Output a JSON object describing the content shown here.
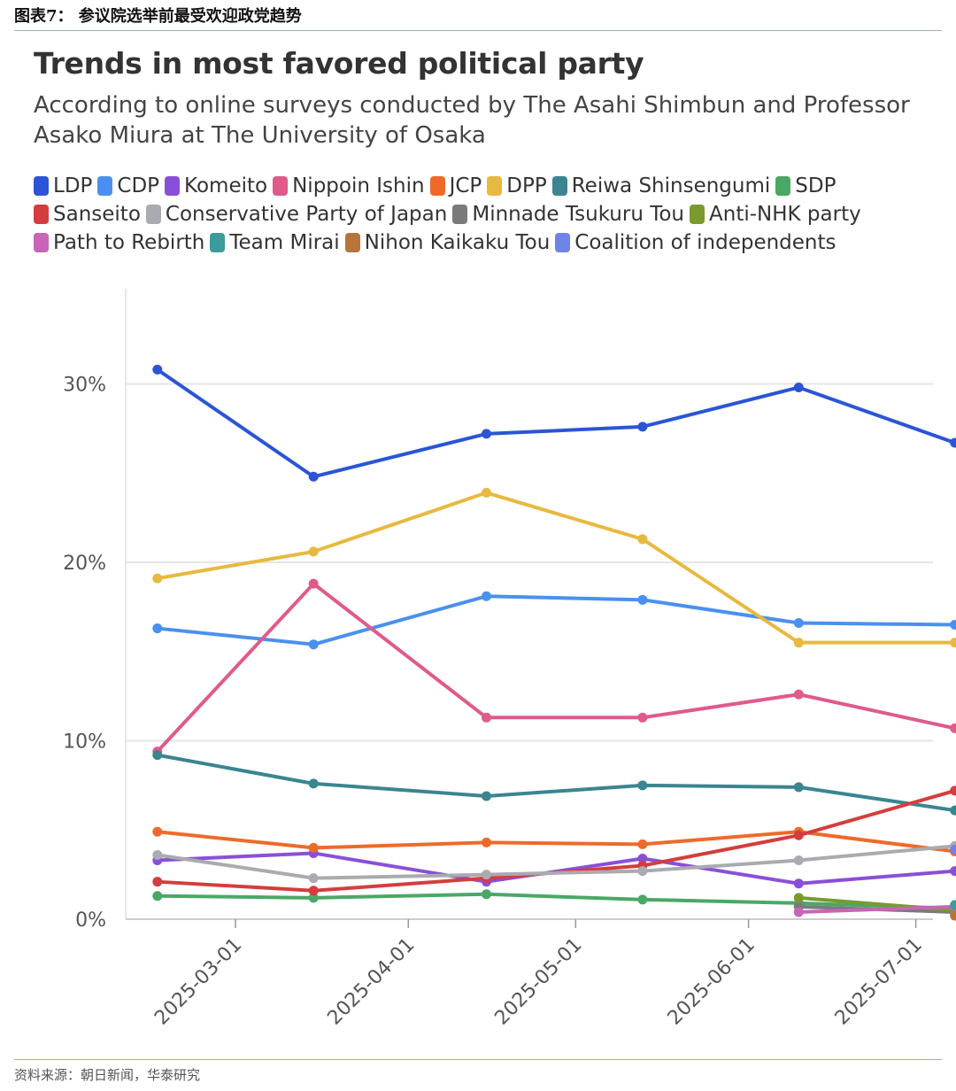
{
  "figure_label": "图表7：  参议院选举前最受欢迎政党趋势",
  "source_note": "资料来源：朝日新闻，华泰研究",
  "chart_data": {
    "type": "line",
    "title": "Trends in most favored political party",
    "subtitle": "According to online surveys conducted by The Asahi Shimbun and Professor Asako Miura at The University of Osaka",
    "x": [
      "2025-02-15",
      "2025-03-15",
      "2025-04-15",
      "2025-05-13",
      "2025-06-10",
      "2025-07-08"
    ],
    "x_ticks": [
      "2025-03-01",
      "2025-04-01",
      "2025-05-01",
      "2025-06-01",
      "2025-07-01"
    ],
    "y_ticks": [
      "0%",
      "10%",
      "20%",
      "30%"
    ],
    "ylim": [
      0,
      35
    ],
    "legend_rows": [
      [
        "LDP",
        "CDP",
        "Komeito",
        "Nippoin Ishin",
        "JCP",
        "DPP",
        "Reiwa Shinsengumi",
        "SDP"
      ],
      [
        "Sanseito",
        "Conservative Party of Japan",
        "Minnade Tsukuru Tou",
        "Anti-NHK party"
      ],
      [
        "Path to Rebirth",
        "Team Mirai",
        "Nihon Kaikaku Tou",
        "Coalition of independents"
      ]
    ],
    "series": [
      {
        "name": "LDP",
        "color": "#2b55d6",
        "values": [
          30.8,
          24.8,
          27.2,
          27.6,
          29.8,
          26.7
        ]
      },
      {
        "name": "CDP",
        "color": "#4a90f0",
        "values": [
          16.3,
          15.4,
          18.1,
          17.9,
          16.6,
          16.5
        ]
      },
      {
        "name": "Komeito",
        "color": "#8a4fd8",
        "values": [
          3.3,
          3.7,
          2.1,
          3.4,
          2.0,
          2.7
        ]
      },
      {
        "name": "Nippoin Ishin",
        "color": "#e05a8c",
        "values": [
          9.4,
          18.8,
          11.3,
          11.3,
          12.6,
          10.7
        ]
      },
      {
        "name": "JCP",
        "color": "#ee6a2a",
        "values": [
          4.9,
          4.0,
          4.3,
          4.2,
          4.9,
          3.8
        ]
      },
      {
        "name": "DPP",
        "color": "#e8b940",
        "values": [
          19.1,
          20.6,
          23.9,
          21.3,
          15.5,
          15.5
        ]
      },
      {
        "name": "Reiwa Shinsengumi",
        "color": "#3a8590",
        "values": [
          9.2,
          7.6,
          6.9,
          7.5,
          7.4,
          6.1
        ]
      },
      {
        "name": "SDP",
        "color": "#4aa866",
        "values": [
          1.3,
          1.2,
          1.4,
          1.1,
          0.9,
          0.6
        ]
      },
      {
        "name": "Sanseito",
        "color": "#d43d3d",
        "values": [
          2.1,
          1.6,
          2.3,
          3.0,
          4.7,
          7.2
        ]
      },
      {
        "name": "Conservative Party of Japan",
        "color": "#a9abb0",
        "values": [
          3.6,
          2.3,
          2.5,
          2.7,
          3.3,
          4.1
        ]
      },
      {
        "name": "Minnade Tsukuru Tou",
        "color": "#7a7a7a",
        "values": [
          null,
          null,
          null,
          null,
          0.7,
          0.4
        ]
      },
      {
        "name": "Anti-NHK party",
        "color": "#7a9a2e",
        "values": [
          null,
          null,
          null,
          null,
          1.2,
          0.5
        ]
      },
      {
        "name": "Path to Rebirth",
        "color": "#c865b8",
        "values": [
          null,
          null,
          null,
          null,
          0.4,
          0.7
        ]
      },
      {
        "name": "Team Mirai",
        "color": "#3a9c9c",
        "values": [
          null,
          null,
          null,
          null,
          null,
          0.8
        ]
      },
      {
        "name": "Nihon Kaikaku Tou",
        "color": "#b8743a",
        "values": [
          null,
          null,
          null,
          null,
          null,
          0.2
        ]
      },
      {
        "name": "Coalition of independents",
        "color": "#6f84e8",
        "values": [
          null,
          null,
          null,
          null,
          null,
          3.9
        ]
      }
    ]
  }
}
